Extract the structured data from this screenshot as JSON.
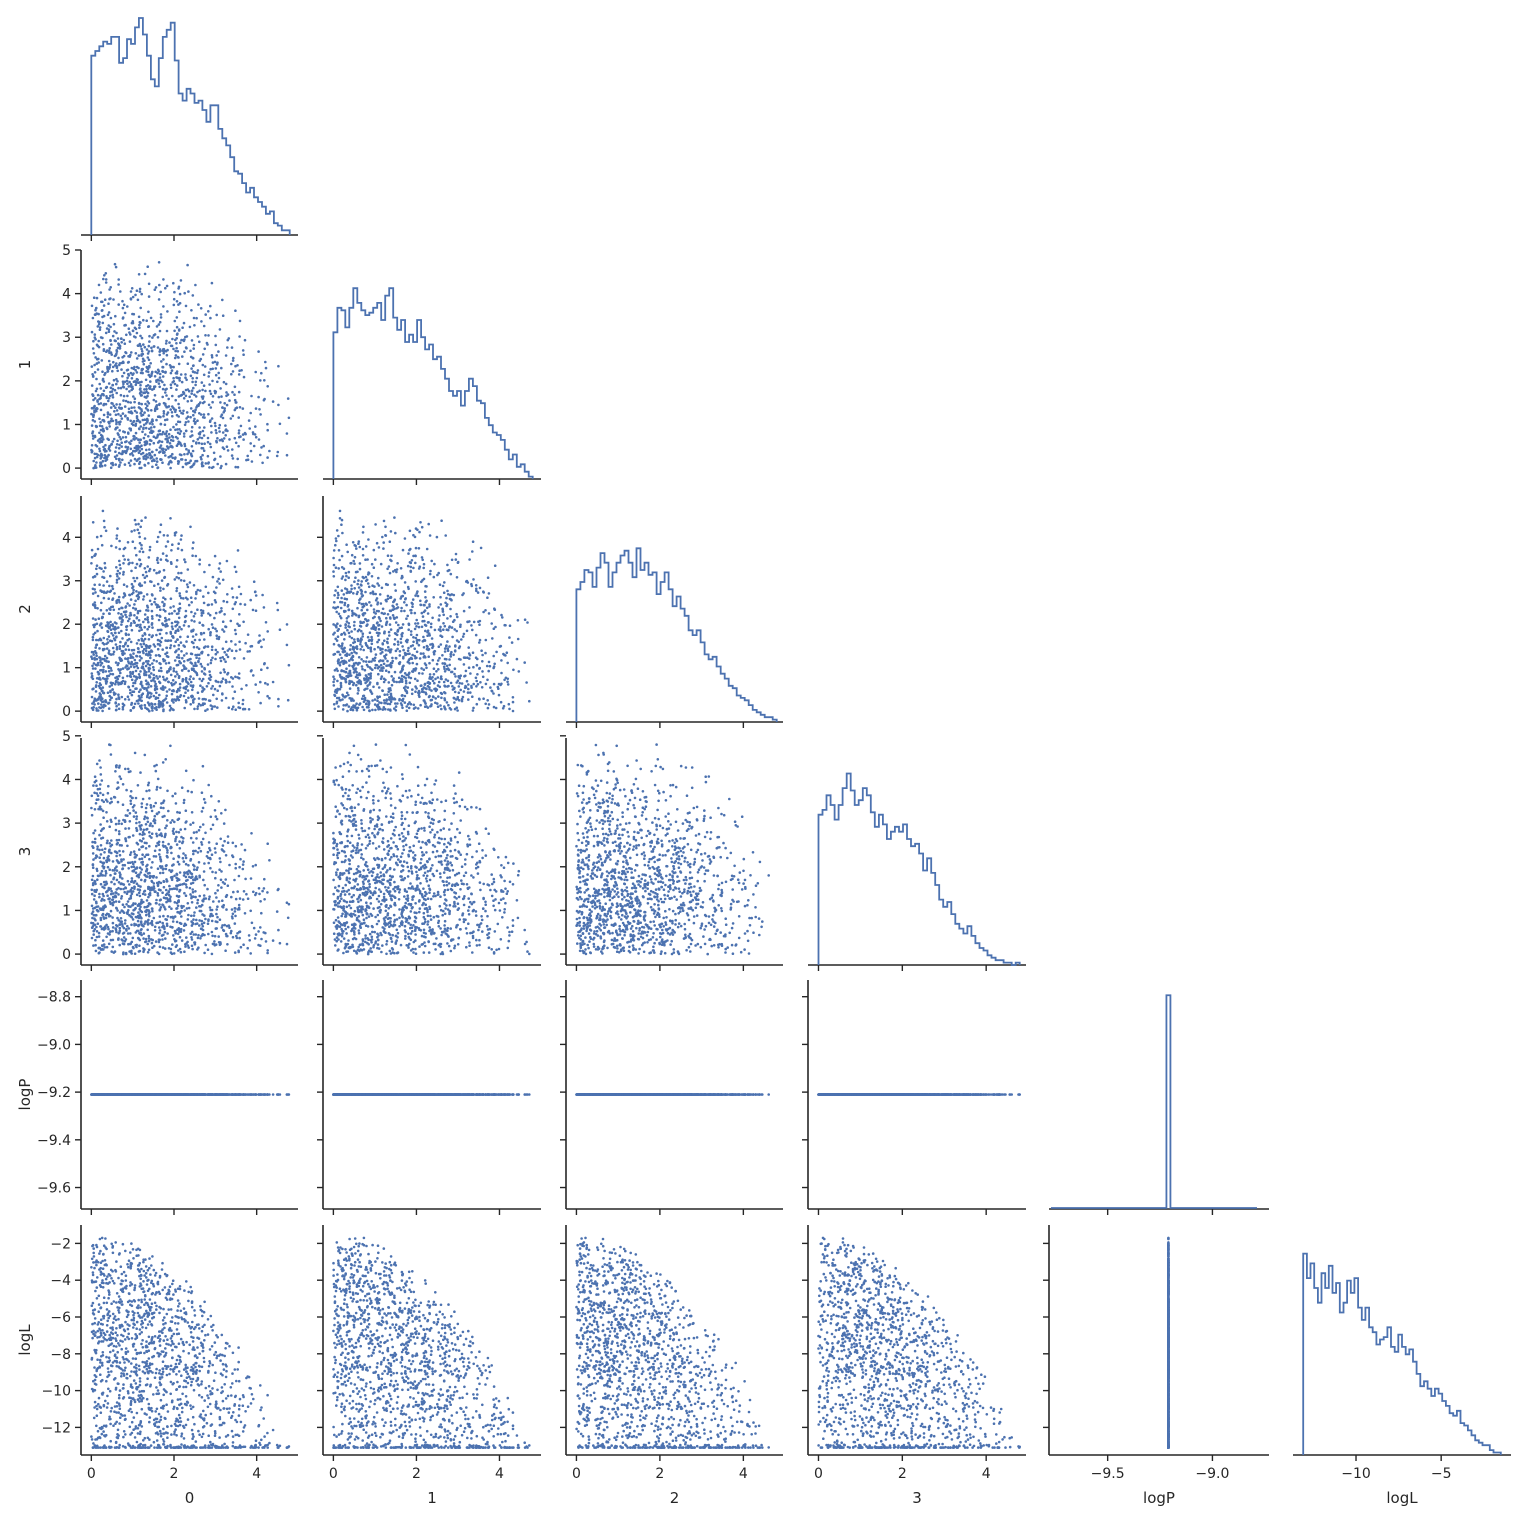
{
  "colors": {
    "series": "#4c72b0",
    "axis": "#262626",
    "background": "#ffffff"
  },
  "chart_data": {
    "type": "scatter",
    "layout": "corner pair plot (lower triangle scatter, diagonal step histograms)",
    "grid": false,
    "variables": [
      {
        "name": "0",
        "ticks": [
          0,
          2,
          4
        ],
        "tick_labels": [
          "0",
          "2",
          "4"
        ],
        "range": [
          -0.25,
          5.0
        ]
      },
      {
        "name": "1",
        "ticks": [
          0,
          1,
          2,
          3,
          4,
          5
        ],
        "tick_labels": [
          "0",
          "1",
          "2",
          "3",
          "4",
          "5"
        ],
        "range": [
          -0.25,
          5.0
        ]
      },
      {
        "name": "2",
        "ticks": [
          0,
          1,
          2,
          3,
          4
        ],
        "tick_labels": [
          "0",
          "1",
          "2",
          "3",
          "4"
        ],
        "range": [
          -0.25,
          4.95
        ]
      },
      {
        "name": "3",
        "ticks": [
          0,
          1,
          2,
          3,
          4,
          5
        ],
        "tick_labels": [
          "0",
          "1",
          "2",
          "3",
          "4",
          "5"
        ],
        "range": [
          -0.25,
          4.95
        ]
      },
      {
        "name": "logP",
        "ticks": [
          -9.6,
          -9.4,
          -9.2,
          -9.0,
          -8.8
        ],
        "tick_labels": [
          "−9.6",
          "−9.4",
          "−9.2",
          "−9.0",
          "−8.8"
        ],
        "range": [
          -9.69,
          -8.73
        ],
        "constant_value": -9.21
      },
      {
        "name": "logL",
        "ticks": [
          -12,
          -10,
          -8,
          -6,
          -4,
          -2
        ],
        "tick_labels": [
          "−12",
          "−10",
          "−8",
          "−6",
          "−4",
          "−2"
        ],
        "range": [
          -13.5,
          -1.0
        ]
      }
    ],
    "bottom_axes": [
      {
        "variable": "0",
        "ticks": [
          0,
          2,
          4
        ],
        "tick_labels": [
          "0",
          "2",
          "4"
        ]
      },
      {
        "variable": "1",
        "ticks": [
          0,
          2,
          4
        ],
        "tick_labels": [
          "0",
          "2",
          "4"
        ]
      },
      {
        "variable": "2",
        "ticks": [
          0,
          2,
          4
        ],
        "tick_labels": [
          "0",
          "2",
          "4"
        ]
      },
      {
        "variable": "3",
        "ticks": [
          0,
          2,
          4
        ],
        "tick_labels": [
          "0",
          "2",
          "4"
        ]
      },
      {
        "variable": "logP",
        "range": [
          -9.78,
          -8.73
        ],
        "ticks": [
          -9.5,
          -9.0
        ],
        "tick_labels": [
          "−9.5",
          "−9.0"
        ]
      },
      {
        "variable": "logL",
        "range": [
          -13.7,
          -0.9
        ],
        "ticks": [
          -10,
          -5
        ],
        "tick_labels": [
          "−10",
          "−5"
        ]
      }
    ],
    "diagonal_histograms": {
      "0": [
        0.76,
        0.78,
        0.8,
        0.82,
        0.81,
        0.84,
        0.84,
        0.73,
        0.75,
        0.83,
        0.81,
        0.88,
        0.92,
        0.85,
        0.76,
        0.66,
        0.63,
        0.75,
        0.84,
        0.87,
        0.9,
        0.74,
        0.6,
        0.57,
        0.62,
        0.6,
        0.56,
        0.57,
        0.53,
        0.48,
        0.55,
        0.55,
        0.45,
        0.41,
        0.38,
        0.33,
        0.27,
        0.26,
        0.22,
        0.18,
        0.2,
        0.16,
        0.14,
        0.12,
        0.09,
        0.1,
        0.05,
        0.04,
        0.02,
        0.02
      ],
      "1": [
        0.6,
        0.7,
        0.69,
        0.62,
        0.7,
        0.78,
        0.72,
        0.69,
        0.67,
        0.68,
        0.7,
        0.72,
        0.65,
        0.75,
        0.78,
        0.66,
        0.61,
        0.65,
        0.56,
        0.59,
        0.56,
        0.65,
        0.58,
        0.53,
        0.55,
        0.49,
        0.5,
        0.45,
        0.41,
        0.36,
        0.34,
        0.36,
        0.3,
        0.36,
        0.41,
        0.38,
        0.32,
        0.31,
        0.25,
        0.22,
        0.19,
        0.18,
        0.16,
        0.12,
        0.08,
        0.1,
        0.05,
        0.06,
        0.03,
        0.01
      ],
      "2": [
        0.55,
        0.58,
        0.63,
        0.62,
        0.56,
        0.64,
        0.7,
        0.66,
        0.56,
        0.62,
        0.66,
        0.69,
        0.71,
        0.66,
        0.6,
        0.72,
        0.63,
        0.66,
        0.61,
        0.62,
        0.53,
        0.58,
        0.62,
        0.55,
        0.48,
        0.52,
        0.47,
        0.44,
        0.38,
        0.36,
        0.38,
        0.33,
        0.28,
        0.26,
        0.27,
        0.23,
        0.2,
        0.18,
        0.15,
        0.14,
        0.11,
        0.1,
        0.09,
        0.07,
        0.05,
        0.04,
        0.03,
        0.02,
        0.02,
        0.01
      ],
      "3": [
        0.62,
        0.64,
        0.7,
        0.66,
        0.6,
        0.66,
        0.73,
        0.79,
        0.72,
        0.66,
        0.68,
        0.73,
        0.7,
        0.63,
        0.57,
        0.62,
        0.58,
        0.52,
        0.55,
        0.57,
        0.55,
        0.58,
        0.52,
        0.49,
        0.5,
        0.46,
        0.39,
        0.44,
        0.38,
        0.33,
        0.27,
        0.24,
        0.26,
        0.21,
        0.17,
        0.15,
        0.13,
        0.16,
        0.12,
        0.09,
        0.07,
        0.06,
        0.04,
        0.03,
        0.02,
        0.02,
        0.01,
        0.01,
        0.0,
        0.01
      ],
      "logP": {
        "spike_at": -9.21,
        "spike_height": 0.95
      },
      "logL": [
        0.82,
        0.72,
        0.78,
        0.68,
        0.62,
        0.74,
        0.68,
        0.77,
        0.66,
        0.7,
        0.58,
        0.62,
        0.71,
        0.66,
        0.72,
        0.6,
        0.55,
        0.6,
        0.52,
        0.5,
        0.45,
        0.47,
        0.48,
        0.52,
        0.44,
        0.42,
        0.49,
        0.44,
        0.41,
        0.43,
        0.38,
        0.33,
        0.28,
        0.3,
        0.27,
        0.24,
        0.27,
        0.25,
        0.22,
        0.2,
        0.17,
        0.16,
        0.18,
        0.13,
        0.12,
        0.1,
        0.08,
        0.06,
        0.05,
        0.04,
        0.04,
        0.02,
        0.01,
        0.01
      ]
    },
    "samples": {
      "count": 1500,
      "distribution": "Each parameter 0–3 lies in [0, ~4.8], density roughly uniform near 0 and decreasing to zero near 4.8; logL ranges from about −13 to −1.5, densest near −13; logP is constant at about −9.21 for every sample"
    }
  }
}
